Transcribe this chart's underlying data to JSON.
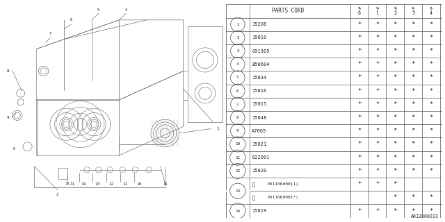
{
  "diagram_ref": "A032000033",
  "col_headers": [
    "9\n0",
    "9\n1",
    "9\n2",
    "9\n3",
    "9\n4"
  ],
  "parts": [
    {
      "num": "1",
      "code": "15208",
      "stars": [
        true,
        true,
        true,
        true,
        true
      ],
      "special": null
    },
    {
      "num": "2",
      "code": "15010",
      "stars": [
        true,
        true,
        true,
        true,
        true
      ],
      "special": null
    },
    {
      "num": "3",
      "code": "G91905",
      "stars": [
        true,
        true,
        true,
        true,
        true
      ],
      "special": null
    },
    {
      "num": "4",
      "code": "B50604",
      "stars": [
        true,
        true,
        true,
        true,
        true
      ],
      "special": null
    },
    {
      "num": "5",
      "code": "15034",
      "stars": [
        true,
        true,
        true,
        true,
        true
      ],
      "special": null
    },
    {
      "num": "6",
      "code": "15016",
      "stars": [
        true,
        true,
        true,
        true,
        true
      ],
      "special": null
    },
    {
      "num": "7",
      "code": "15015",
      "stars": [
        true,
        true,
        true,
        true,
        true
      ],
      "special": null
    },
    {
      "num": "8",
      "code": "15048",
      "stars": [
        true,
        true,
        true,
        true,
        true
      ],
      "special": null
    },
    {
      "num": "9",
      "code": "A7065",
      "stars": [
        true,
        true,
        true,
        true,
        true
      ],
      "special": null
    },
    {
      "num": "10",
      "code": "15021",
      "stars": [
        true,
        true,
        true,
        true,
        true
      ],
      "special": null
    },
    {
      "num": "11",
      "code": "D22001",
      "stars": [
        true,
        true,
        true,
        true,
        true
      ],
      "special": null
    },
    {
      "num": "12",
      "code": "15020",
      "stars": [
        true,
        true,
        true,
        true,
        true
      ],
      "special": null
    },
    {
      "num": "13",
      "code": "031106000(1)",
      "stars": [
        true,
        true,
        true,
        false,
        false
      ],
      "special": "W"
    },
    {
      "num": "13",
      "code": "031106000(*)",
      "stars": [
        false,
        false,
        true,
        true,
        true
      ],
      "special": "W"
    },
    {
      "num": "14",
      "code": "15019",
      "stars": [
        true,
        true,
        true,
        true,
        true
      ],
      "special": null
    }
  ],
  "bg_color": "#ffffff",
  "line_color": "#5a5a5a",
  "text_color": "#2a2a2a",
  "diag_line_color": "#7a7a7a"
}
